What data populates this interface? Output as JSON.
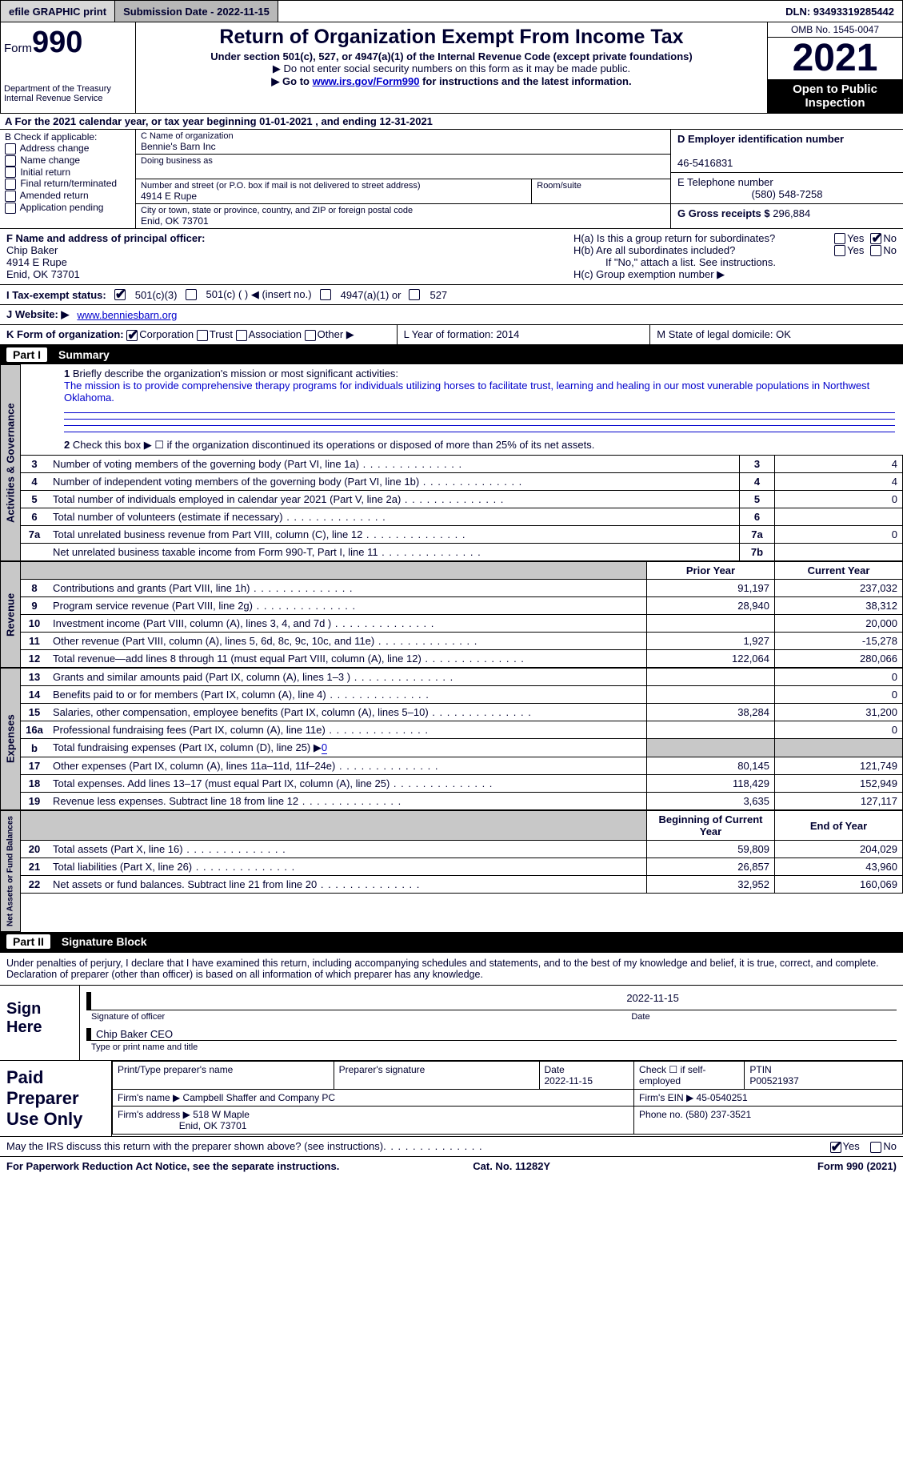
{
  "topbar": {
    "efile": "efile GRAPHIC print",
    "submission": "Submission Date - 2022-11-15",
    "dln": "DLN: 93493319285442"
  },
  "header": {
    "form_word": "Form",
    "form_num": "990",
    "dept": "Department of the Treasury",
    "irs": "Internal Revenue Service",
    "title": "Return of Organization Exempt From Income Tax",
    "sub1": "Under section 501(c), 527, or 4947(a)(1) of the Internal Revenue Code (except private foundations)",
    "sub2": "▶ Do not enter social security numbers on this form as it may be made public.",
    "sub3_pre": "▶ Go to ",
    "sub3_link": "www.irs.gov/Form990",
    "sub3_post": " for instructions and the latest information.",
    "omb": "OMB No. 1545-0047",
    "year": "2021",
    "open": "Open to Public Inspection"
  },
  "row_a": "A For the 2021 calendar year, or tax year beginning 01-01-2021    , and ending 12-31-2021",
  "col_b": {
    "label": "B Check if applicable:",
    "items": [
      "Address change",
      "Name change",
      "Initial return",
      "Final return/terminated",
      "Amended return",
      "Application pending"
    ]
  },
  "col_c": {
    "name_label": "C Name of organization",
    "name": "Bennie's Barn Inc",
    "dba_label": "Doing business as",
    "street_label": "Number and street (or P.O. box if mail is not delivered to street address)",
    "room_label": "Room/suite",
    "street": "4914 E Rupe",
    "city_label": "City or town, state or province, country, and ZIP or foreign postal code",
    "city": "Enid, OK  73701"
  },
  "col_d": {
    "ein_label": "D Employer identification number",
    "ein": "46-5416831",
    "tel_label": "E Telephone number",
    "tel": "(580) 548-7258",
    "gross_label": "G Gross receipts $",
    "gross": "296,884"
  },
  "row_f": {
    "label": "F  Name and address of principal officer:",
    "name": "Chip Baker",
    "street": "4914 E Rupe",
    "city": "Enid, OK  73701"
  },
  "row_h": {
    "ha": "H(a)  Is this a group return for subordinates?",
    "hb": "H(b)  Are all subordinates included?",
    "hb_note": "If \"No,\" attach a list. See instructions.",
    "hc": "H(c)  Group exemption number ▶"
  },
  "row_i": {
    "label": "I    Tax-exempt status:",
    "o1": "501(c)(3)",
    "o2": "501(c) (  ) ◀ (insert no.)",
    "o3": "4947(a)(1) or",
    "o4": "527"
  },
  "row_j": {
    "label": "J   Website: ▶",
    "value": "www.benniesbarn.org"
  },
  "row_k": {
    "label": "K Form of organization:",
    "o1": "Corporation",
    "o2": "Trust",
    "o3": "Association",
    "o4": "Other ▶",
    "l": "L Year of formation: 2014",
    "m": "M State of legal domicile: OK"
  },
  "part1": {
    "label": "Part I",
    "title": "Summary"
  },
  "summary": {
    "q1": "Briefly describe the organization's mission or most significant activities:",
    "mission": "The mission is to provide comprehensive therapy programs for individuals utilizing horses to facilitate trust, learning and healing in our most vunerable populations in Northwest Oklahoma.",
    "q2": "Check this box ▶ ☐ if the organization discontinued its operations or disposed of more than 25% of its net assets.",
    "rows_gov": [
      {
        "n": "3",
        "d": "Number of voting members of the governing body (Part VI, line 1a)",
        "b": "3",
        "v": "4"
      },
      {
        "n": "4",
        "d": "Number of independent voting members of the governing body (Part VI, line 1b)",
        "b": "4",
        "v": "4"
      },
      {
        "n": "5",
        "d": "Total number of individuals employed in calendar year 2021 (Part V, line 2a)",
        "b": "5",
        "v": "0"
      },
      {
        "n": "6",
        "d": "Total number of volunteers (estimate if necessary)",
        "b": "6",
        "v": ""
      },
      {
        "n": "7a",
        "d": "Total unrelated business revenue from Part VIII, column (C), line 12",
        "b": "7a",
        "v": "0"
      },
      {
        "n": "",
        "d": "Net unrelated business taxable income from Form 990-T, Part I, line 11",
        "b": "7b",
        "v": ""
      }
    ],
    "hdr_prior": "Prior Year",
    "hdr_curr": "Current Year",
    "rows_rev": [
      {
        "n": "8",
        "d": "Contributions and grants (Part VIII, line 1h)",
        "p": "91,197",
        "c": "237,032"
      },
      {
        "n": "9",
        "d": "Program service revenue (Part VIII, line 2g)",
        "p": "28,940",
        "c": "38,312"
      },
      {
        "n": "10",
        "d": "Investment income (Part VIII, column (A), lines 3, 4, and 7d )",
        "p": "",
        "c": "20,000"
      },
      {
        "n": "11",
        "d": "Other revenue (Part VIII, column (A), lines 5, 6d, 8c, 9c, 10c, and 11e)",
        "p": "1,927",
        "c": "-15,278"
      },
      {
        "n": "12",
        "d": "Total revenue—add lines 8 through 11 (must equal Part VIII, column (A), line 12)",
        "p": "122,064",
        "c": "280,066"
      }
    ],
    "rows_exp": [
      {
        "n": "13",
        "d": "Grants and similar amounts paid (Part IX, column (A), lines 1–3 )",
        "p": "",
        "c": "0"
      },
      {
        "n": "14",
        "d": "Benefits paid to or for members (Part IX, column (A), line 4)",
        "p": "",
        "c": "0"
      },
      {
        "n": "15",
        "d": "Salaries, other compensation, employee benefits (Part IX, column (A), lines 5–10)",
        "p": "38,284",
        "c": "31,200"
      },
      {
        "n": "16a",
        "d": "Professional fundraising fees (Part IX, column (A), line 11e)",
        "p": "",
        "c": "0"
      },
      {
        "n": "b",
        "d": "Total fundraising expenses (Part IX, column (D), line 25) ▶",
        "p": "shade",
        "c": "shade",
        "fund": "0"
      },
      {
        "n": "17",
        "d": "Other expenses (Part IX, column (A), lines 11a–11d, 11f–24e)",
        "p": "80,145",
        "c": "121,749"
      },
      {
        "n": "18",
        "d": "Total expenses. Add lines 13–17 (must equal Part IX, column (A), line 25)",
        "p": "118,429",
        "c": "152,949"
      },
      {
        "n": "19",
        "d": "Revenue less expenses. Subtract line 18 from line 12",
        "p": "3,635",
        "c": "127,117"
      }
    ],
    "hdr_beg": "Beginning of Current Year",
    "hdr_end": "End of Year",
    "rows_net": [
      {
        "n": "20",
        "d": "Total assets (Part X, line 16)",
        "p": "59,809",
        "c": "204,029"
      },
      {
        "n": "21",
        "d": "Total liabilities (Part X, line 26)",
        "p": "26,857",
        "c": "43,960"
      },
      {
        "n": "22",
        "d": "Net assets or fund balances. Subtract line 21 from line 20",
        "p": "32,952",
        "c": "160,069"
      }
    ]
  },
  "sidelabels": {
    "gov": "Activities & Governance",
    "rev": "Revenue",
    "exp": "Expenses",
    "net": "Net Assets or Fund Balances"
  },
  "part2": {
    "label": "Part II",
    "title": "Signature Block"
  },
  "sig": {
    "text": "Under penalties of perjury, I declare that I have examined this return, including accompanying schedules and statements, and to the best of my knowledge and belief, it is true, correct, and complete. Declaration of preparer (other than officer) is based on all information of which preparer has any knowledge.",
    "sign_here": "Sign Here",
    "sig_officer": "Signature of officer",
    "date": "Date",
    "date_val": "2022-11-15",
    "name_title": "Chip Baker CEO",
    "name_title_label": "Type or print name and title"
  },
  "paid": {
    "label": "Paid Preparer Use Only",
    "r1": {
      "c1": "Print/Type preparer's name",
      "c2": "Preparer's signature",
      "c3l": "Date",
      "c3v": "2022-11-15",
      "c4": "Check ☐ if self-employed",
      "c5l": "PTIN",
      "c5v": "P00521937"
    },
    "r2": {
      "c1": "Firm's name    ▶",
      "c1v": "Campbell Shaffer and Company PC",
      "c2": "Firm's EIN ▶ 45-0540251"
    },
    "r3": {
      "c1": "Firm's address ▶",
      "c1v": "518 W Maple",
      "c1v2": "Enid, OK  73701",
      "c2": "Phone no. (580) 237-3521"
    }
  },
  "footer": {
    "q": "May the IRS discuss this return with the preparer shown above? (see instructions)",
    "yes": "Yes",
    "no": "No"
  },
  "bottom": {
    "l": "For Paperwork Reduction Act Notice, see the separate instructions.",
    "m": "Cat. No. 11282Y",
    "r": "Form 990 (2021)"
  }
}
